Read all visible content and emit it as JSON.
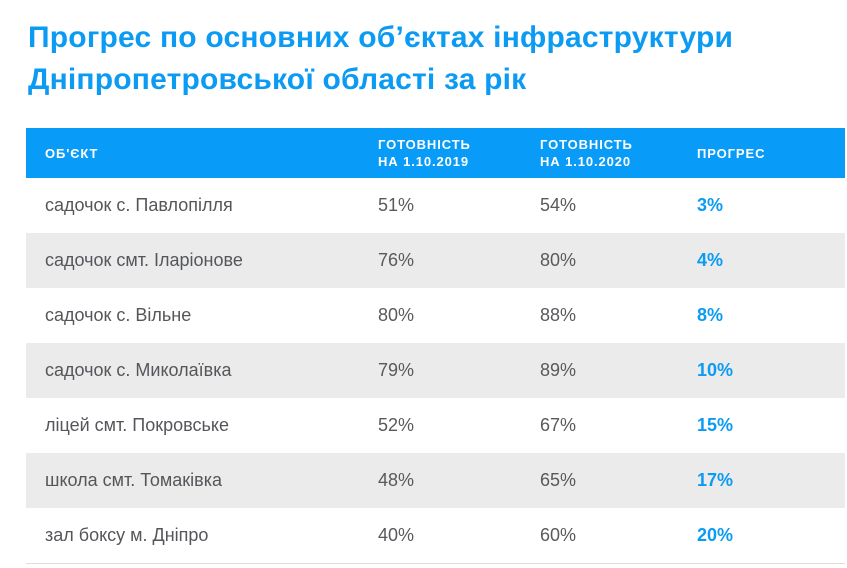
{
  "title": {
    "line1": "Прогрес по основних об’єктах інфраструктури",
    "line2": "Дніпропетровської області за рік"
  },
  "table": {
    "columns": [
      {
        "line1": "ОБ'ЄКТ",
        "line2": ""
      },
      {
        "line1": "ГОТОВНІСТЬ",
        "line2": "НА 1.10.2019"
      },
      {
        "line1": "ГОТОВНІСТЬ",
        "line2": "НА 1.10.2020"
      },
      {
        "line1": "ПРОГРЕС",
        "line2": ""
      }
    ],
    "rows": [
      {
        "object": "садочок с. Павлопілля",
        "ready_2019": "51%",
        "ready_2020": "54%",
        "progress": "3%"
      },
      {
        "object": "садочок смт. Іларіонове",
        "ready_2019": "76%",
        "ready_2020": "80%",
        "progress": "4%"
      },
      {
        "object": "садочок с. Вільне",
        "ready_2019": "80%",
        "ready_2020": "88%",
        "progress": "8%"
      },
      {
        "object": "садочок с. Миколаївка",
        "ready_2019": "79%",
        "ready_2020": "89%",
        "progress": "10%"
      },
      {
        "object": "ліцей смт. Покровське",
        "ready_2019": "52%",
        "ready_2020": "67%",
        "progress": "15%"
      },
      {
        "object": "школа смт. Томаківка",
        "ready_2019": "48%",
        "ready_2020": "65%",
        "progress": "17%"
      },
      {
        "object": "зал боксу м. Дніпро",
        "ready_2019": "40%",
        "ready_2020": "60%",
        "progress": "20%"
      }
    ]
  },
  "colors": {
    "accent_blue": "#0c9bf2",
    "header_bg": "#089cf8",
    "stripe_gray": "#ebebeb",
    "body_text": "#54565a",
    "value_text": "#58595c",
    "bottom_border": "#dedede"
  },
  "chart_data": {
    "type": "table",
    "title": "Прогрес по основних об’єктах інфраструктури Дніпропетровської області за рік",
    "columns": [
      "ОБ'ЄКТ",
      "ГОТОВНІСТЬ НА 1.10.2019",
      "ГОТОВНІСТЬ НА 1.10.2020",
      "ПРОГРЕС"
    ],
    "units": "percent",
    "rows": [
      [
        "садочок с. Павлопілля",
        51,
        54,
        3
      ],
      [
        "садочок смт. Іларіонове",
        76,
        80,
        4
      ],
      [
        "садочок с. Вільне",
        80,
        88,
        8
      ],
      [
        "садочок с. Миколаївка",
        79,
        89,
        10
      ],
      [
        "ліцей смт. Покровське",
        52,
        67,
        15
      ],
      [
        "школа смт. Томаківка",
        48,
        65,
        17
      ],
      [
        "зал боксу м. Дніпро",
        40,
        60,
        20
      ]
    ]
  }
}
